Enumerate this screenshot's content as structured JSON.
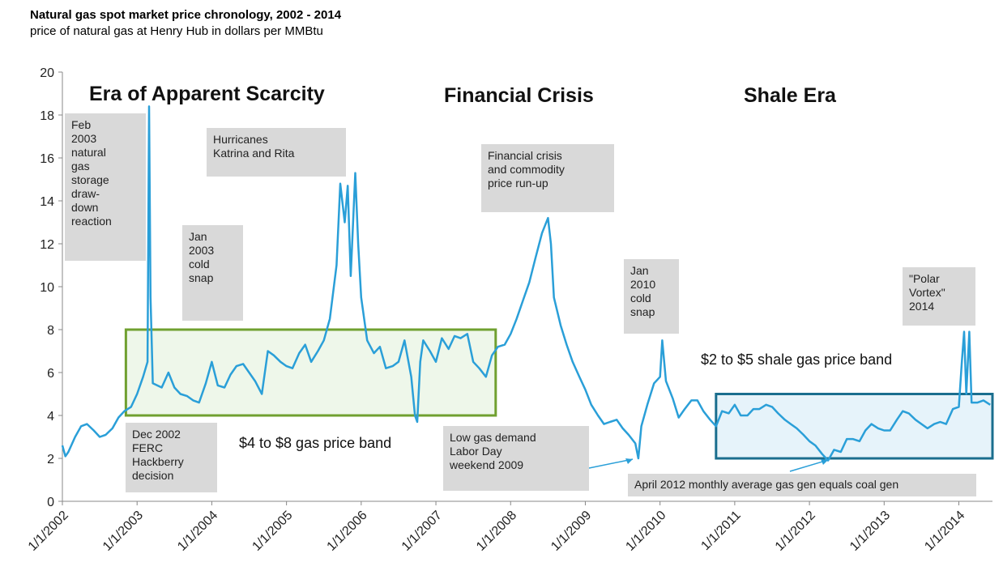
{
  "title": "Natural gas spot market price chronology, 2002 - 2014",
  "subtitle": "price of natural gas at Henry Hub in dollars per MMBtu",
  "chart_data": {
    "type": "line",
    "color": "#2a9fd8",
    "xlim": [
      2002,
      2014.45
    ],
    "ylim": [
      0,
      20
    ],
    "yticks": [
      0,
      2,
      4,
      6,
      8,
      10,
      12,
      14,
      16,
      18,
      20
    ],
    "xticks": [
      {
        "value": 2002,
        "label": "1/1/2002"
      },
      {
        "value": 2003,
        "label": "1/1/2003"
      },
      {
        "value": 2004,
        "label": "1/1/2004"
      },
      {
        "value": 2005,
        "label": "1/1/2005"
      },
      {
        "value": 2006,
        "label": "1/1/2006"
      },
      {
        "value": 2007,
        "label": "1/1/2007"
      },
      {
        "value": 2008,
        "label": "1/1/2008"
      },
      {
        "value": 2009,
        "label": "1/1/2009"
      },
      {
        "value": 2010,
        "label": "1/1/2010"
      },
      {
        "value": 2011,
        "label": "1/1/2011"
      },
      {
        "value": 2012,
        "label": "1/1/2012"
      },
      {
        "value": 2013,
        "label": "1/1/2013"
      },
      {
        "value": 2014,
        "label": "1/1/2014"
      }
    ],
    "x": [
      2002.0,
      2002.04,
      2002.08,
      2002.17,
      2002.25,
      2002.33,
      2002.42,
      2002.5,
      2002.58,
      2002.67,
      2002.75,
      2002.83,
      2002.92,
      2003.0,
      2003.08,
      2003.14,
      2003.16,
      2003.18,
      2003.21,
      2003.33,
      2003.42,
      2003.5,
      2003.58,
      2003.67,
      2003.75,
      2003.83,
      2003.92,
      2004.0,
      2004.08,
      2004.17,
      2004.25,
      2004.33,
      2004.42,
      2004.5,
      2004.58,
      2004.67,
      2004.75,
      2004.83,
      2004.92,
      2005.0,
      2005.08,
      2005.17,
      2005.25,
      2005.33,
      2005.42,
      2005.5,
      2005.58,
      2005.67,
      2005.72,
      2005.78,
      2005.82,
      2005.86,
      2005.92,
      2005.96,
      2006.0,
      2006.08,
      2006.17,
      2006.25,
      2006.33,
      2006.42,
      2006.5,
      2006.58,
      2006.67,
      2006.72,
      2006.75,
      2006.79,
      2006.83,
      2006.92,
      2007.0,
      2007.08,
      2007.17,
      2007.25,
      2007.33,
      2007.42,
      2007.5,
      2007.58,
      2007.67,
      2007.75,
      2007.83,
      2007.92,
      2008.0,
      2008.08,
      2008.17,
      2008.25,
      2008.33,
      2008.42,
      2008.5,
      2008.54,
      2008.58,
      2008.67,
      2008.75,
      2008.83,
      2008.92,
      2009.0,
      2009.08,
      2009.17,
      2009.25,
      2009.33,
      2009.42,
      2009.5,
      2009.58,
      2009.67,
      2009.71,
      2009.75,
      2009.83,
      2009.92,
      2010.0,
      2010.03,
      2010.08,
      2010.17,
      2010.25,
      2010.33,
      2010.42,
      2010.5,
      2010.58,
      2010.67,
      2010.75,
      2010.83,
      2010.92,
      2011.0,
      2011.08,
      2011.17,
      2011.25,
      2011.33,
      2011.42,
      2011.5,
      2011.58,
      2011.67,
      2011.75,
      2011.83,
      2011.92,
      2012.0,
      2012.08,
      2012.17,
      2012.25,
      2012.33,
      2012.42,
      2012.5,
      2012.58,
      2012.67,
      2012.75,
      2012.83,
      2012.92,
      2013.0,
      2013.08,
      2013.17,
      2013.25,
      2013.33,
      2013.42,
      2013.5,
      2013.58,
      2013.67,
      2013.75,
      2013.83,
      2013.92,
      2014.0,
      2014.04,
      2014.07,
      2014.1,
      2014.14,
      2014.17,
      2014.25,
      2014.33,
      2014.42
    ],
    "values": [
      2.6,
      2.1,
      2.3,
      3.0,
      3.5,
      3.6,
      3.3,
      3.0,
      3.1,
      3.4,
      3.9,
      4.2,
      4.4,
      5.0,
      5.8,
      6.5,
      18.4,
      9.5,
      5.5,
      5.3,
      6.0,
      5.3,
      5.0,
      4.9,
      4.7,
      4.6,
      5.5,
      6.5,
      5.4,
      5.3,
      5.9,
      6.3,
      6.4,
      6.0,
      5.6,
      5.0,
      7.0,
      6.8,
      6.5,
      6.3,
      6.2,
      6.9,
      7.3,
      6.5,
      7.0,
      7.5,
      8.5,
      11.0,
      14.8,
      13.0,
      14.7,
      10.5,
      15.3,
      12.0,
      9.5,
      7.5,
      6.9,
      7.2,
      6.2,
      6.3,
      6.5,
      7.5,
      5.8,
      4.0,
      3.7,
      6.5,
      7.5,
      7.0,
      6.5,
      7.6,
      7.1,
      7.7,
      7.6,
      7.8,
      6.5,
      6.2,
      5.8,
      6.8,
      7.2,
      7.3,
      7.8,
      8.5,
      9.4,
      10.2,
      11.3,
      12.5,
      13.2,
      12.0,
      9.5,
      8.2,
      7.3,
      6.5,
      5.8,
      5.2,
      4.5,
      4.0,
      3.6,
      3.7,
      3.8,
      3.4,
      3.1,
      2.7,
      2.0,
      3.5,
      4.5,
      5.5,
      5.8,
      7.5,
      5.6,
      4.8,
      3.9,
      4.3,
      4.7,
      4.7,
      4.2,
      3.8,
      3.5,
      4.2,
      4.1,
      4.5,
      4.0,
      4.0,
      4.3,
      4.3,
      4.5,
      4.4,
      4.1,
      3.8,
      3.6,
      3.4,
      3.1,
      2.8,
      2.6,
      2.2,
      1.9,
      2.4,
      2.3,
      2.9,
      2.9,
      2.8,
      3.3,
      3.6,
      3.4,
      3.3,
      3.3,
      3.8,
      4.2,
      4.1,
      3.8,
      3.6,
      3.4,
      3.6,
      3.7,
      3.6,
      4.3,
      4.4,
      6.5,
      7.9,
      5.0,
      7.9,
      4.6,
      4.6,
      4.7,
      4.5
    ],
    "bands": [
      {
        "label": "$4 to $8 gas price band",
        "xlim": [
          2002.85,
          2007.8
        ],
        "ylim": [
          4,
          8
        ],
        "color": "#70a030",
        "fill": "#eef7ea"
      },
      {
        "label": "$2 to $5 shale gas price band",
        "xlim": [
          2010.75,
          2014.45
        ],
        "ylim": [
          2,
          5
        ],
        "color": "#1a6e8e",
        "fill": "#e6f3fa"
      }
    ],
    "eras": [
      "Era of Apparent Scarcity",
      "Financial Crisis",
      "Shale Era"
    ],
    "annotations": [
      "Feb\n2003\nnatural\ngas\nstorage\ndraw-\ndown\nreaction",
      "Jan\n2003\ncold\nsnap",
      "Hurricanes\nKatrina and Rita",
      "Financial crisis\nand commodity\nprice run-up",
      "Jan\n2010\ncold\nsnap",
      "\"Polar\nVortex\"\n2014",
      "Dec 2002\nFERC\nHackberry\ndecision",
      "Low gas demand\nLabor Day\nweekend 2009",
      "April 2012  monthly average  gas gen equals coal gen"
    ]
  }
}
